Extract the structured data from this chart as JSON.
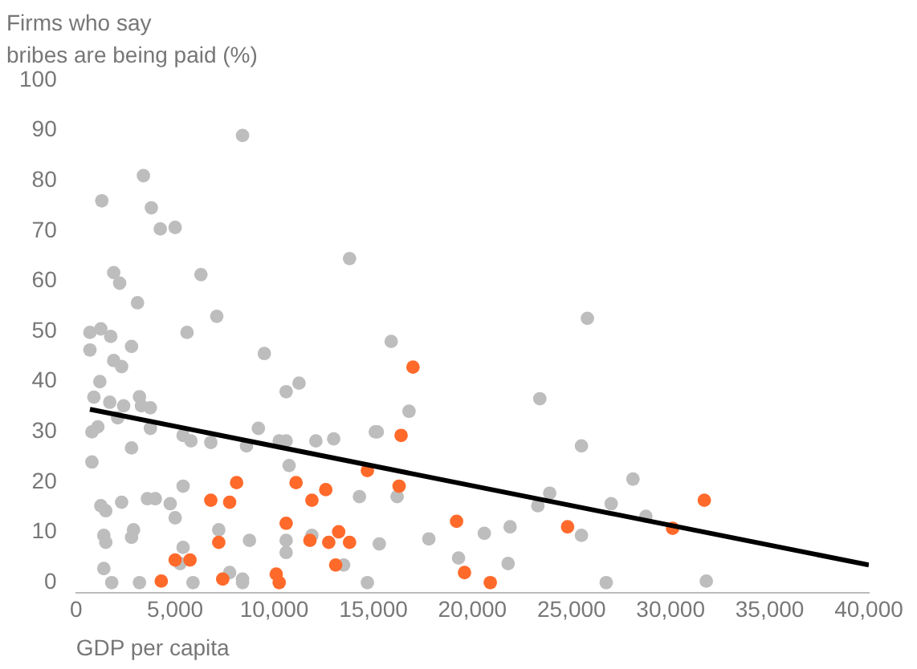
{
  "chart_data": {
    "type": "scatter",
    "ylabel": "Firms who say\nbribes are being paid (%)",
    "xlabel": "GDP per capita",
    "xlim": [
      0,
      40000
    ],
    "ylim": [
      -2,
      100
    ],
    "xticks": [
      0,
      {
        "value": 5000,
        "label": "5,000"
      },
      {
        "value": 10000,
        "label": "10,000"
      },
      {
        "value": 15000,
        "label": "15,000"
      },
      {
        "value": 20000,
        "label": "20,000"
      },
      {
        "value": 25000,
        "label": "25,000"
      },
      {
        "value": 30000,
        "label": "30,000"
      },
      {
        "value": 35000,
        "label": "35,000"
      },
      {
        "value": 40000,
        "label": "40,000"
      }
    ],
    "yticks": [
      0,
      10,
      20,
      30,
      40,
      50,
      60,
      70,
      80,
      90,
      100
    ],
    "grid": false,
    "legend": false,
    "marker": "circle",
    "series": [
      {
        "color": "#bdbdbd",
        "x": [
          8400,
          3400,
          1300,
          3800,
          4250,
          5000,
          13800,
          1900,
          2200,
          6300,
          3100,
          7100,
          5600,
          700,
          1250,
          1750,
          700,
          2800,
          1900,
          2300,
          9500,
          1200,
          11250,
          10600,
          900,
          1700,
          3200,
          2400,
          3300,
          3750,
          2100,
          800,
          1100,
          3750,
          5400,
          5800,
          6800,
          9200,
          8600,
          10250,
          10600,
          12100,
          13000,
          15100,
          2800,
          10750,
          800,
          5400,
          1250,
          1500,
          2300,
          3600,
          4000,
          4750,
          5000,
          14300,
          7200,
          1400,
          1500,
          2900,
          2800,
          8750,
          10600,
          10600,
          11900,
          5400,
          5250,
          1400,
          13500,
          7750,
          8400,
          8400,
          1800,
          3200,
          5900,
          14700,
          15300,
          15900,
          25800,
          16800,
          15200,
          23400,
          25500,
          28100,
          16200,
          23900,
          23300,
          27000,
          28750,
          17800,
          20600,
          21900,
          25500,
          19300,
          21800,
          31800,
          26750
        ],
        "values": [
          89,
          81,
          76,
          74.6,
          70.4,
          70.7,
          64.5,
          61.7,
          59.6,
          61.3,
          55.7,
          53,
          49.8,
          49.8,
          50.5,
          49,
          46.3,
          47,
          44.2,
          43,
          45.6,
          40,
          39.7,
          38,
          36.9,
          35.9,
          37,
          35.2,
          35.2,
          34.8,
          32.8,
          30,
          31,
          30.7,
          29.3,
          28.2,
          27.9,
          30.7,
          27.2,
          28.2,
          28.2,
          28.2,
          28.6,
          30,
          26.8,
          23.3,
          24,
          19.2,
          15.3,
          14.3,
          16,
          16.7,
          16.7,
          15.7,
          12.9,
          17.1,
          10.5,
          9.4,
          8,
          10.5,
          9,
          8.4,
          8.4,
          6,
          9.4,
          7,
          3.8,
          2.8,
          3.5,
          2,
          0.7,
          0,
          0,
          0,
          0,
          0,
          7.7,
          48,
          52.6,
          34.1,
          30,
          36.6,
          27.2,
          20.6,
          17.1,
          17.8,
          15.3,
          15.7,
          13.2,
          8.7,
          9.8,
          11.1,
          9.4,
          4.9,
          3.8,
          0.3,
          0
        ]
      },
      {
        "color": "#ff6a2b",
        "x": [
          8100,
          6800,
          7750,
          11100,
          12600,
          11900,
          14700,
          10600,
          7200,
          11800,
          12750,
          13250,
          13800,
          5000,
          5750,
          13100,
          4300,
          7400,
          10100,
          10250,
          17000,
          16400,
          16300,
          19200,
          19600,
          20900,
          24800,
          30100,
          31700
        ],
        "values": [
          19.9,
          16.4,
          16,
          19.9,
          18.5,
          16.4,
          22.3,
          11.8,
          8,
          8.4,
          8,
          10.1,
          8,
          4.5,
          4.5,
          3.5,
          0.3,
          0.7,
          1.7,
          0,
          42.9,
          29.3,
          19.2,
          12.2,
          2,
          0,
          11.1,
          10.8,
          16.4
        ]
      },
      {
        "type": "line",
        "color": "#000000",
        "marker": "none",
        "x": [
          700,
          40000
        ],
        "values": [
          34.5,
          3.5
        ]
      }
    ]
  }
}
